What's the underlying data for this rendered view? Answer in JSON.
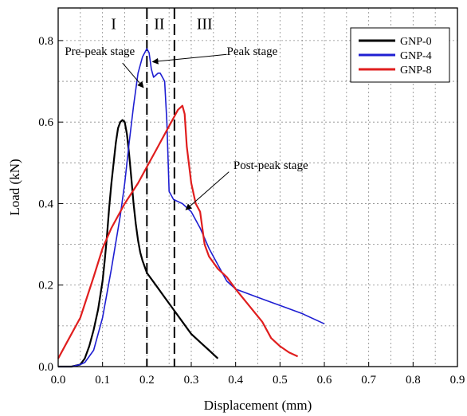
{
  "chart_data": {
    "type": "line",
    "title": "",
    "xlabel": "Displacement (mm)",
    "ylabel": "Load (kN)",
    "xlim": [
      0.0,
      0.9
    ],
    "ylim": [
      0.0,
      0.88
    ],
    "xticks": [
      0.0,
      0.1,
      0.2,
      0.3,
      0.4,
      0.5,
      0.6,
      0.7,
      0.8,
      0.9
    ],
    "xtick_labels": [
      "0.0",
      "0.1",
      "0.2",
      "0.3",
      "0.4",
      "0.5",
      "0.6",
      "0.7",
      "0.8",
      "0.9"
    ],
    "yticks": [
      0.0,
      0.2,
      0.4,
      0.6,
      0.8
    ],
    "ytick_labels": [
      "0.0",
      "0.2",
      "0.4",
      "0.6",
      "0.8"
    ],
    "grid": true,
    "legend": "top-right",
    "series": [
      {
        "name": "GNP-0",
        "color": "#000000",
        "x": [
          0.0,
          0.03,
          0.05,
          0.06,
          0.07,
          0.08,
          0.09,
          0.1,
          0.105,
          0.11,
          0.115,
          0.12,
          0.125,
          0.13,
          0.135,
          0.14,
          0.145,
          0.15,
          0.155,
          0.16,
          0.165,
          0.17,
          0.175,
          0.18,
          0.185,
          0.19,
          0.2,
          0.22,
          0.24,
          0.26,
          0.28,
          0.3,
          0.32,
          0.34,
          0.36
        ],
        "y": [
          0.0,
          0.0,
          0.005,
          0.02,
          0.05,
          0.09,
          0.14,
          0.21,
          0.26,
          0.32,
          0.39,
          0.45,
          0.5,
          0.55,
          0.585,
          0.6,
          0.605,
          0.6,
          0.57,
          0.52,
          0.46,
          0.4,
          0.35,
          0.31,
          0.28,
          0.26,
          0.23,
          0.2,
          0.17,
          0.14,
          0.11,
          0.08,
          0.06,
          0.04,
          0.02
        ]
      },
      {
        "name": "GNP-4",
        "color": "#1e1ed2",
        "x": [
          0.0,
          0.03,
          0.05,
          0.06,
          0.08,
          0.1,
          0.12,
          0.14,
          0.15,
          0.16,
          0.17,
          0.18,
          0.19,
          0.2,
          0.205,
          0.21,
          0.215,
          0.22,
          0.225,
          0.23,
          0.24,
          0.245,
          0.25,
          0.26,
          0.28,
          0.3,
          0.32,
          0.34,
          0.36,
          0.38,
          0.4,
          0.45,
          0.5,
          0.55,
          0.6
        ],
        "y": [
          0.0,
          0.0,
          0.005,
          0.01,
          0.04,
          0.12,
          0.24,
          0.37,
          0.45,
          0.55,
          0.64,
          0.72,
          0.76,
          0.78,
          0.77,
          0.73,
          0.71,
          0.715,
          0.72,
          0.72,
          0.7,
          0.6,
          0.43,
          0.41,
          0.4,
          0.38,
          0.34,
          0.29,
          0.25,
          0.21,
          0.19,
          0.17,
          0.15,
          0.13,
          0.105
        ]
      },
      {
        "name": "GNP-8",
        "color": "#e01e1e",
        "x": [
          0.0,
          0.02,
          0.05,
          0.08,
          0.1,
          0.12,
          0.15,
          0.18,
          0.2,
          0.22,
          0.24,
          0.26,
          0.27,
          0.28,
          0.285,
          0.29,
          0.3,
          0.31,
          0.32,
          0.33,
          0.34,
          0.36,
          0.38,
          0.4,
          0.43,
          0.46,
          0.48,
          0.5,
          0.52,
          0.54
        ],
        "y": [
          0.02,
          0.06,
          0.12,
          0.22,
          0.29,
          0.34,
          0.4,
          0.45,
          0.49,
          0.53,
          0.57,
          0.61,
          0.63,
          0.64,
          0.62,
          0.54,
          0.45,
          0.4,
          0.38,
          0.3,
          0.27,
          0.24,
          0.22,
          0.19,
          0.15,
          0.11,
          0.07,
          0.05,
          0.035,
          0.025
        ]
      }
    ],
    "stage_lines": [
      0.2,
      0.262
    ],
    "stage_labels": [
      {
        "text": "I",
        "x": 0.125,
        "y": 0.828
      },
      {
        "text": "II",
        "x": 0.228,
        "y": 0.828
      },
      {
        "text": "III",
        "x": 0.33,
        "y": 0.828
      }
    ],
    "annotations": [
      {
        "text": "Pre-peak stage",
        "tx": 0.015,
        "ty": 0.765,
        "ax1": 0.145,
        "ay1": 0.745,
        "ax2": 0.192,
        "ay2": 0.685
      },
      {
        "text": "Peak stage",
        "tx": 0.38,
        "ty": 0.765,
        "ax1": 0.38,
        "ay1": 0.766,
        "ax2": 0.213,
        "ay2": 0.748
      },
      {
        "text": "Post-peak stage",
        "tx": 0.395,
        "ty": 0.485,
        "ax1": 0.385,
        "ay1": 0.478,
        "ax2": 0.288,
        "ay2": 0.385
      }
    ]
  }
}
